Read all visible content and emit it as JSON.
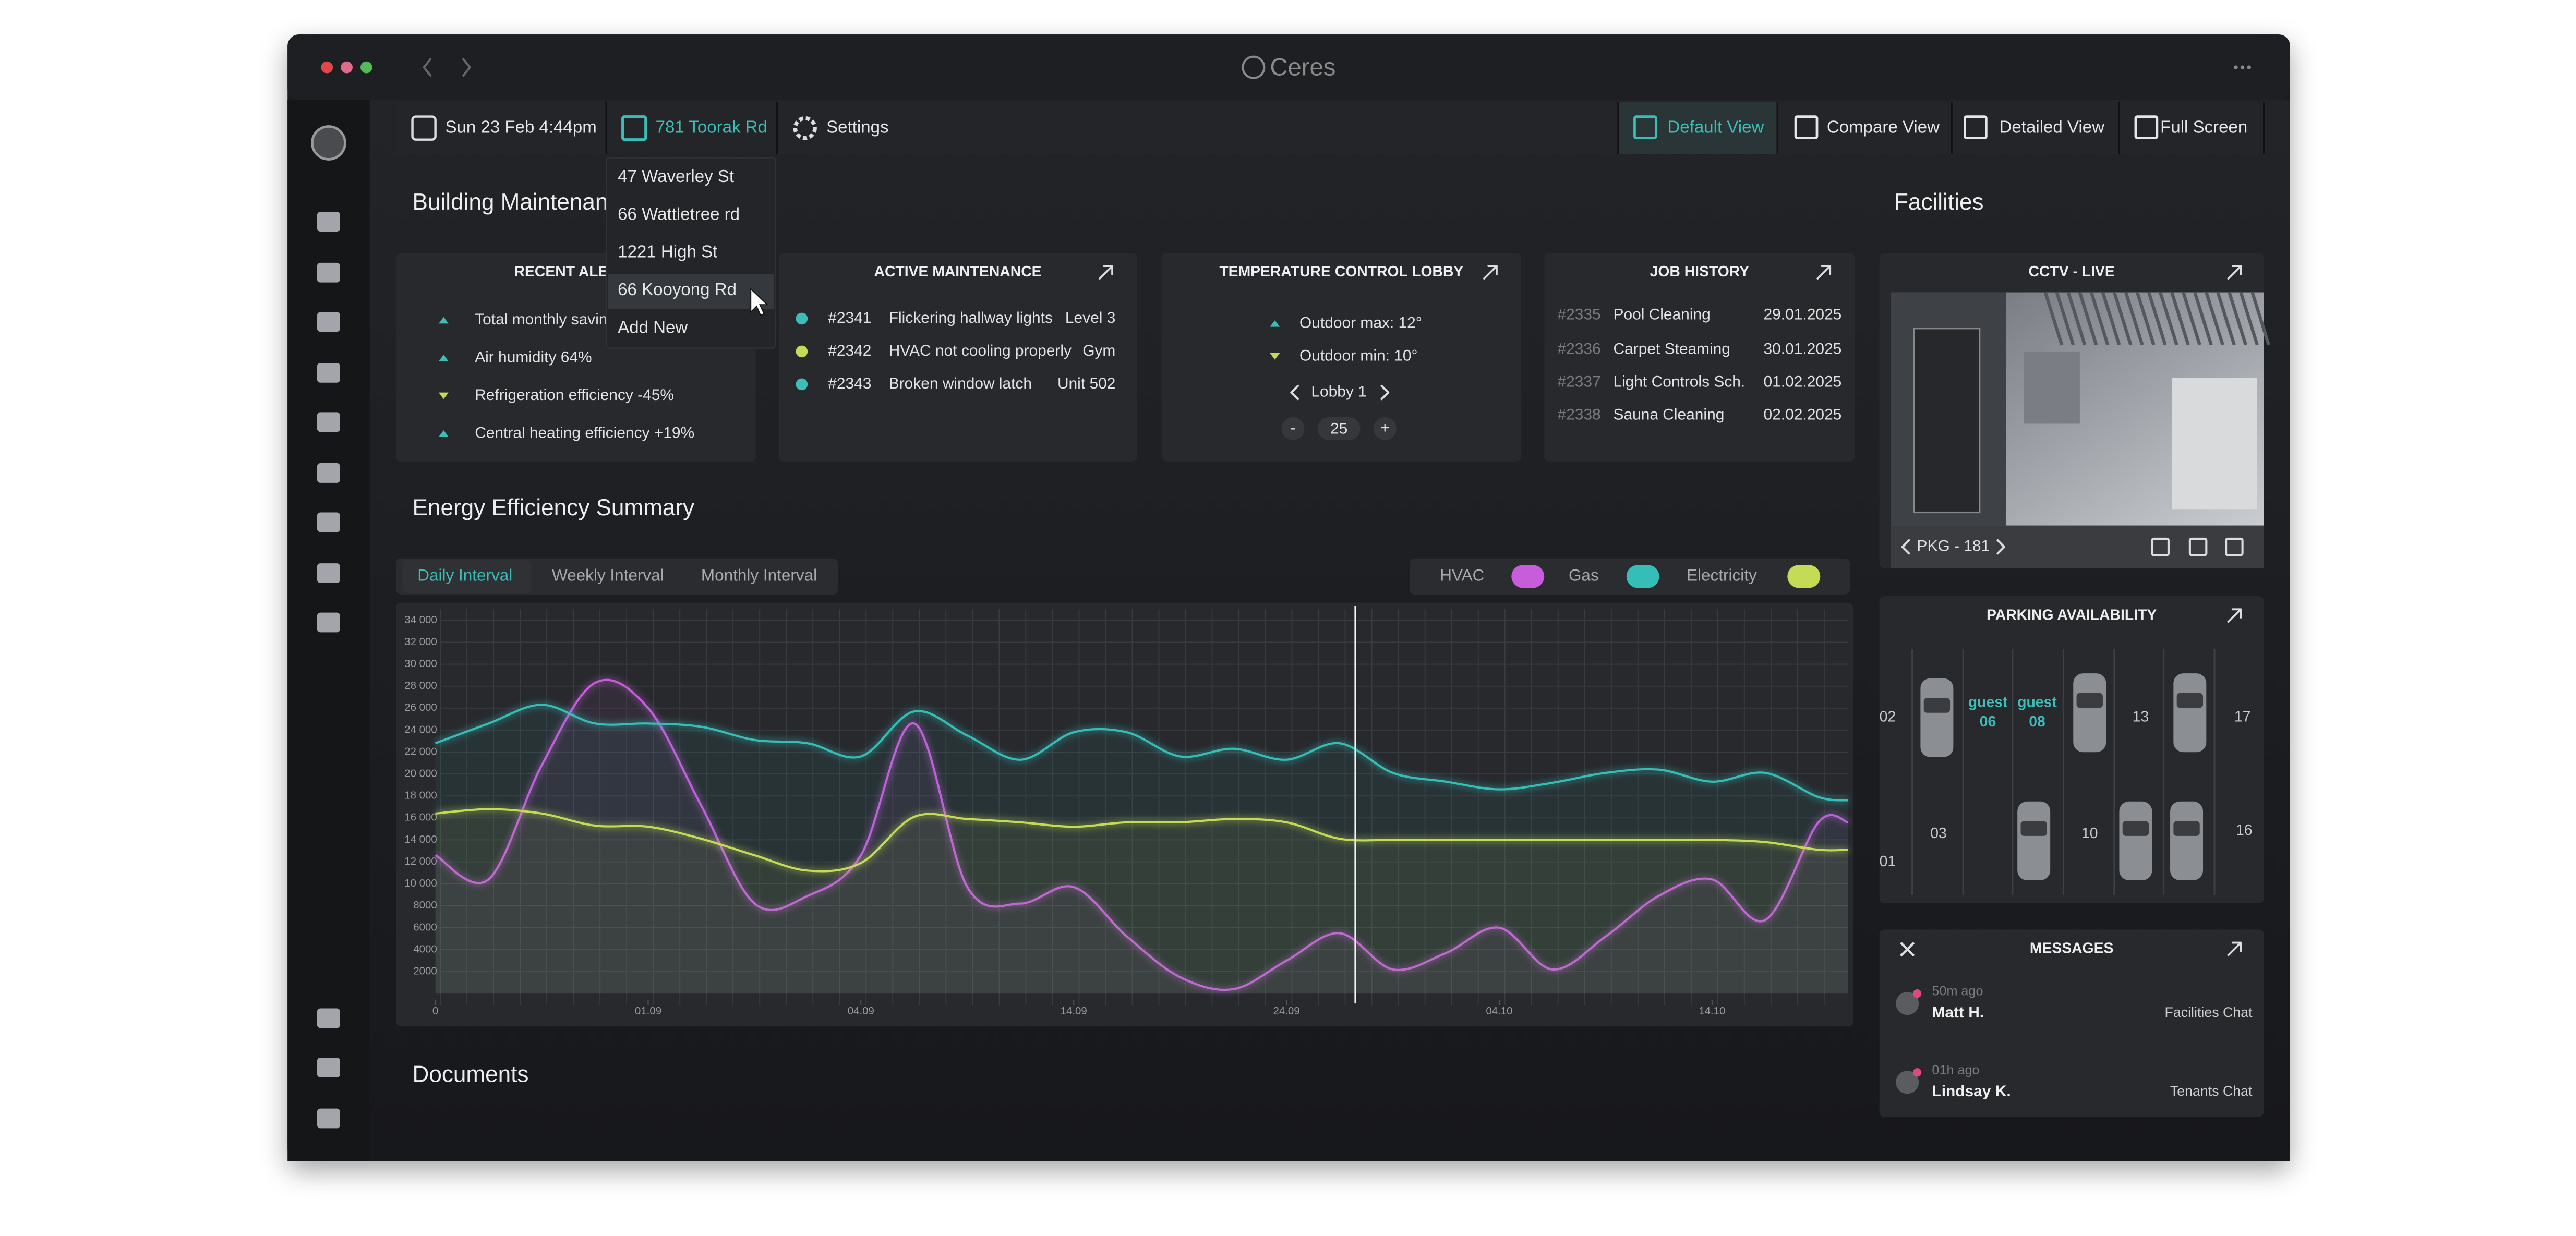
{
  "window": {
    "app_name": "Ceres"
  },
  "toolbar": {
    "date": "Sun 23 Feb 4:44pm",
    "location": "781 Toorak Rd",
    "settings": "Settings",
    "views": [
      "Default View",
      "Compare View",
      "Detailed View",
      "Full Screen"
    ]
  },
  "location_menu": [
    "47 Waverley St",
    "66 Wattletree rd",
    "1221 High St",
    "66 Kooyong Rd",
    "Add New"
  ],
  "sections": {
    "maintenance": "Building Maintenance",
    "energy": "Energy Efficiency Summary",
    "documents": "Documents",
    "facilities": "Facilities"
  },
  "recent_alerts": {
    "title": "RECENT ALERTS",
    "items": [
      "Total monthly savings",
      "Air humidity 64%",
      "Refrigeration efficiency -45%",
      "Central heating efficiency +19%"
    ]
  },
  "active_maintenance": {
    "title": "ACTIVE MAINTENANCE",
    "items": [
      {
        "id": "#2341",
        "task": "Flickering hallway lights",
        "location": "Level 3"
      },
      {
        "id": "#2342",
        "task": "HVAC not cooling properly",
        "location": "Gym"
      },
      {
        "id": "#2343",
        "task": "Broken window latch",
        "location": "Unit 502"
      }
    ]
  },
  "temperature": {
    "title": "TEMPERATURE CONTROL LOBBY",
    "max": "Outdoor max: 12°",
    "min": "Outdoor min: 10°",
    "zone": "Lobby 1",
    "minus": "-",
    "setpoint": 25,
    "plus": "+"
  },
  "job_history": {
    "title": "JOB HISTORY",
    "items": [
      {
        "id": "#2335",
        "task": "Pool Cleaning",
        "date": "29.01.2025"
      },
      {
        "id": "#2336",
        "task": "Carpet Steaming",
        "date": "30.01.2025"
      },
      {
        "id": "#2337",
        "task": "Light Controls Sch.",
        "date": "01.02.2025"
      },
      {
        "id": "#2338",
        "task": "Sauna Cleaning",
        "date": "02.02.2025"
      }
    ]
  },
  "chart_data": {
    "type": "line",
    "intervals": [
      "Daily Interval",
      "Weekly Interval",
      "Monthly Interval"
    ],
    "grid": true,
    "x": [
      0,
      0.25,
      0.5,
      0.75,
      1,
      1.25,
      1.5,
      1.75,
      2,
      2.25,
      2.5,
      2.75,
      3,
      3.25,
      3.5,
      3.75,
      4,
      4.25,
      4.5,
      4.75,
      5,
      5.25,
      5.5,
      5.75,
      6,
      6.25,
      6.5,
      6.64
    ],
    "xlim": [
      0,
      6.64
    ],
    "xticks": [
      0,
      {
        "value": 1,
        "label": "01.09"
      },
      {
        "value": 2,
        "label": "04.09"
      },
      {
        "value": 3,
        "label": "14.09"
      },
      {
        "value": 4,
        "label": "24.09"
      },
      {
        "value": 5,
        "label": "04.10"
      },
      {
        "value": 6,
        "label": "14.10"
      }
    ],
    "ylim": [
      0,
      35000
    ],
    "yticks": [
      2000,
      4000,
      6000,
      8000,
      {
        "value": 10000,
        "label": "10 000"
      },
      {
        "value": 12000,
        "label": "12 000"
      },
      {
        "value": 14000,
        "label": "14 000"
      },
      {
        "value": 16000,
        "label": "16 000"
      },
      {
        "value": 18000,
        "label": "18 000"
      },
      {
        "value": 20000,
        "label": "20 000"
      },
      {
        "value": 22000,
        "label": "22 000"
      },
      {
        "value": 24000,
        "label": "24 000"
      },
      {
        "value": 26000,
        "label": "26 000"
      },
      {
        "value": 28000,
        "label": "28 000"
      },
      {
        "value": 30000,
        "label": "30 000"
      },
      {
        "value": 32000,
        "label": "32 000"
      },
      {
        "value": 34000,
        "label": "34 000"
      }
    ],
    "series": [
      {
        "name": "HVAC",
        "color": "#c75ddb",
        "values": [
          12600,
          10400,
          20800,
          28300,
          26000,
          17100,
          8200,
          8900,
          12600,
          24600,
          9700,
          8200,
          9700,
          5200,
          1500,
          400,
          3000,
          5500,
          2200,
          3700,
          6000,
          2200,
          5200,
          8900,
          10400,
          6700,
          15600,
          15600
        ]
      },
      {
        "name": "Gas",
        "color": "#35bdb8",
        "values": [
          22800,
          24600,
          26300,
          24600,
          24600,
          24300,
          23100,
          22800,
          21600,
          25700,
          23500,
          21300,
          23800,
          23800,
          21600,
          22300,
          21300,
          22800,
          20100,
          19300,
          18600,
          19200,
          20100,
          20400,
          19300,
          20100,
          17900,
          17600
        ]
      },
      {
        "name": "Electricity",
        "color": "#c4dc55",
        "values": [
          16400,
          16800,
          16400,
          15300,
          15200,
          14100,
          12600,
          11200,
          11900,
          16100,
          15900,
          15600,
          15200,
          15600,
          15600,
          15900,
          15600,
          14100,
          14000,
          14000,
          14000,
          14000,
          14000,
          14000,
          14000,
          13800,
          13100,
          13100
        ]
      }
    ]
  },
  "cctv": {
    "title": "CCTV - LIVE",
    "camera": "PKG - 181"
  },
  "parking": {
    "title": "PARKING AVAILABILITY",
    "spots": [
      "02",
      "01",
      "03",
      "10",
      "13",
      "17",
      "16"
    ],
    "guest": [
      {
        "label": "guest",
        "number": "06"
      },
      {
        "label": "guest",
        "number": "08"
      }
    ]
  },
  "messages": {
    "title": "MESSAGES",
    "items": [
      {
        "time": "50m ago",
        "name": "Matt H.",
        "channel": "Facilities Chat"
      },
      {
        "time": "01h ago",
        "name": "Lindsay K.",
        "channel": "Tenants Chat"
      }
    ]
  }
}
